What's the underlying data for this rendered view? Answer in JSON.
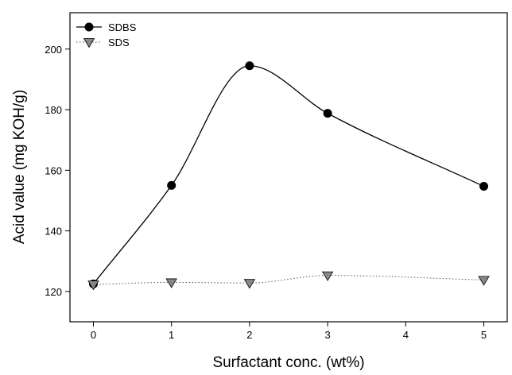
{
  "chart_data": {
    "type": "line",
    "title": "",
    "xlabel": "Surfactant conc. (wt%)",
    "ylabel": "Acid value (mg KOH/g)",
    "xlim": [
      -0.3,
      5.3
    ],
    "ylim": [
      110,
      212
    ],
    "xticks": [
      0,
      1,
      2,
      3,
      4,
      5
    ],
    "yticks": [
      120,
      140,
      160,
      180,
      200
    ],
    "grid": false,
    "legend": {
      "position": "top-left"
    },
    "series": [
      {
        "name": "SDBS",
        "marker": "circle",
        "line_style": "solid",
        "marker_color": "#000000",
        "line_color": "#000000",
        "x": [
          0,
          1,
          2,
          3,
          5
        ],
        "y": [
          122.5,
          155,
          194.5,
          178.8,
          154.7
        ]
      },
      {
        "name": "SDS",
        "marker": "triangle-down",
        "line_style": "dotted",
        "marker_color": "#888888",
        "line_color": "#555555",
        "x": [
          0,
          1,
          2,
          3,
          5
        ],
        "y": [
          122.3,
          123,
          122.8,
          125.3,
          123.8
        ]
      }
    ]
  }
}
